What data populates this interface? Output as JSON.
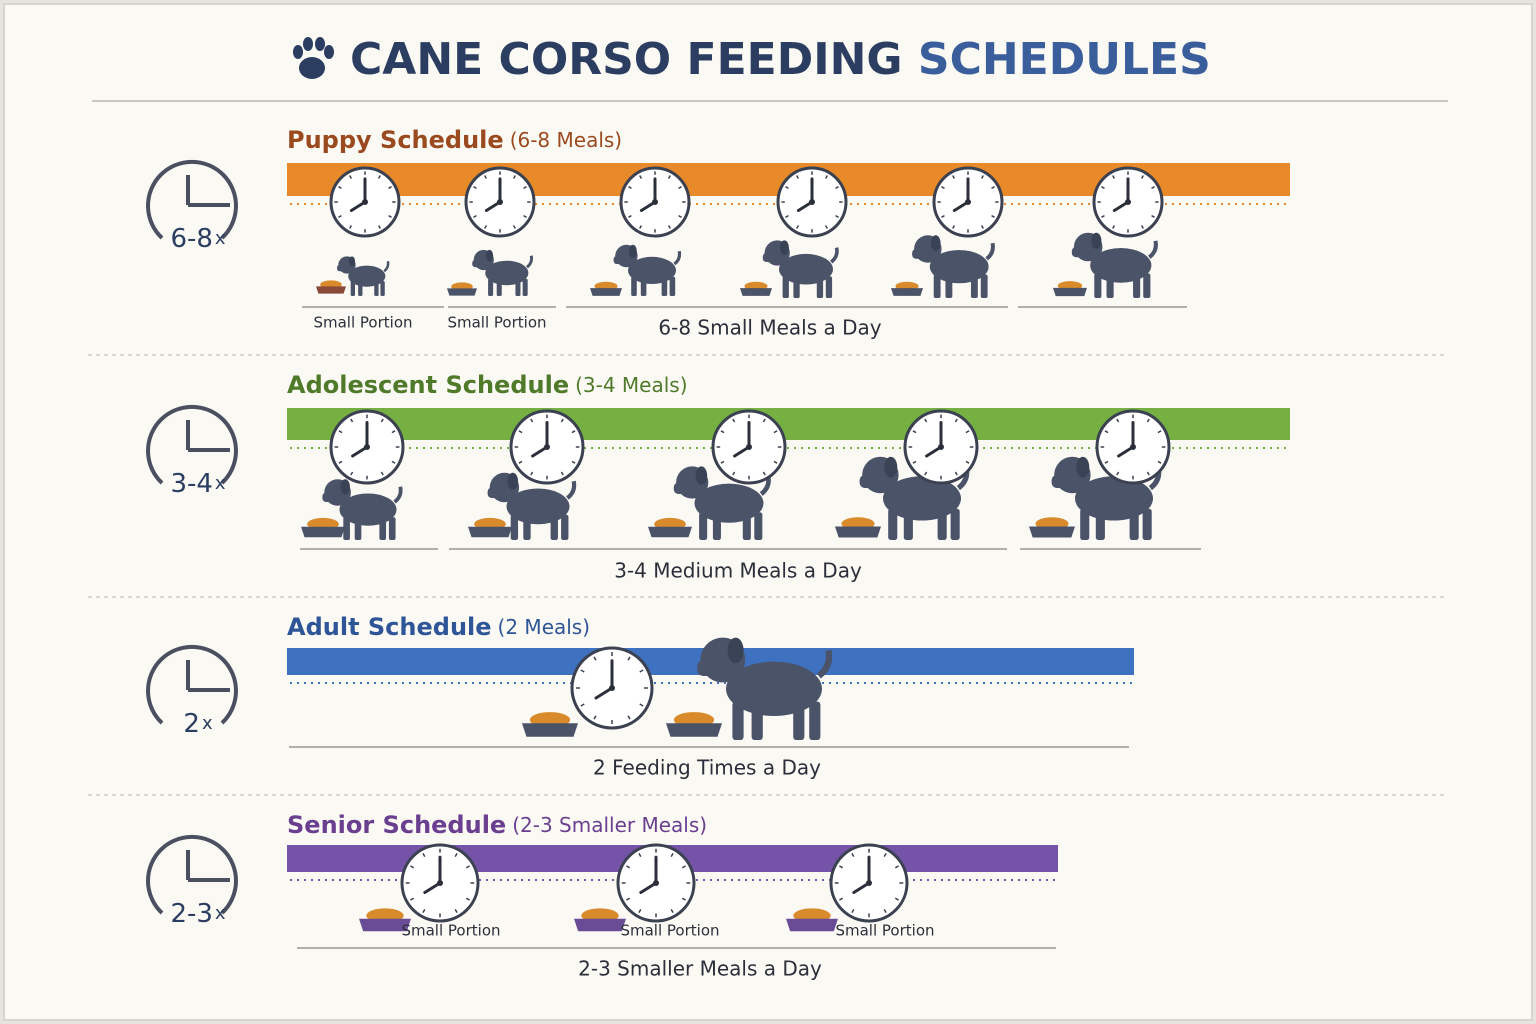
{
  "title": {
    "part1": "CANE CORSO FEEDING",
    "part2": "SCHEDULES",
    "color1": "#2b3d60",
    "color2": "#3a5d9c"
  },
  "sections": [
    {
      "heading": "Puppy Schedule",
      "subheading": "(6-8 Meals)",
      "heading_color": "#9a4a1e",
      "bar_color": "#e88a2a",
      "badge": "6-8",
      "badge_suffix": "x",
      "portion_labels": [
        "Small Portion",
        "Small Portion"
      ],
      "summary": "6-8 Small Meals a Day"
    },
    {
      "heading": "Adolescent Schedule",
      "subheading": "(3-4 Meals)",
      "heading_color": "#4f7a2a",
      "bar_color": "#76b043",
      "badge": "3-4",
      "badge_suffix": "x",
      "portion_labels": [],
      "summary": "3-4 Medium Meals a Day"
    },
    {
      "heading": "Adult Schedule",
      "subheading": "(2 Meals)",
      "heading_color": "#2d5597",
      "bar_color": "#3e72c0",
      "badge": "2",
      "badge_suffix": "x",
      "portion_labels": [],
      "summary": "2 Feeding Times a Day"
    },
    {
      "heading": "Senior Schedule",
      "subheading": "(2-3 Smaller Meals)",
      "heading_color": "#6a3f8f",
      "bar_color": "#7553a8",
      "badge": "2-3",
      "badge_suffix": "x",
      "portion_labels": [
        "Small Portion",
        "Small Portion",
        "Small Portion"
      ],
      "summary": "2-3 Smaller Meals a Day"
    }
  ]
}
